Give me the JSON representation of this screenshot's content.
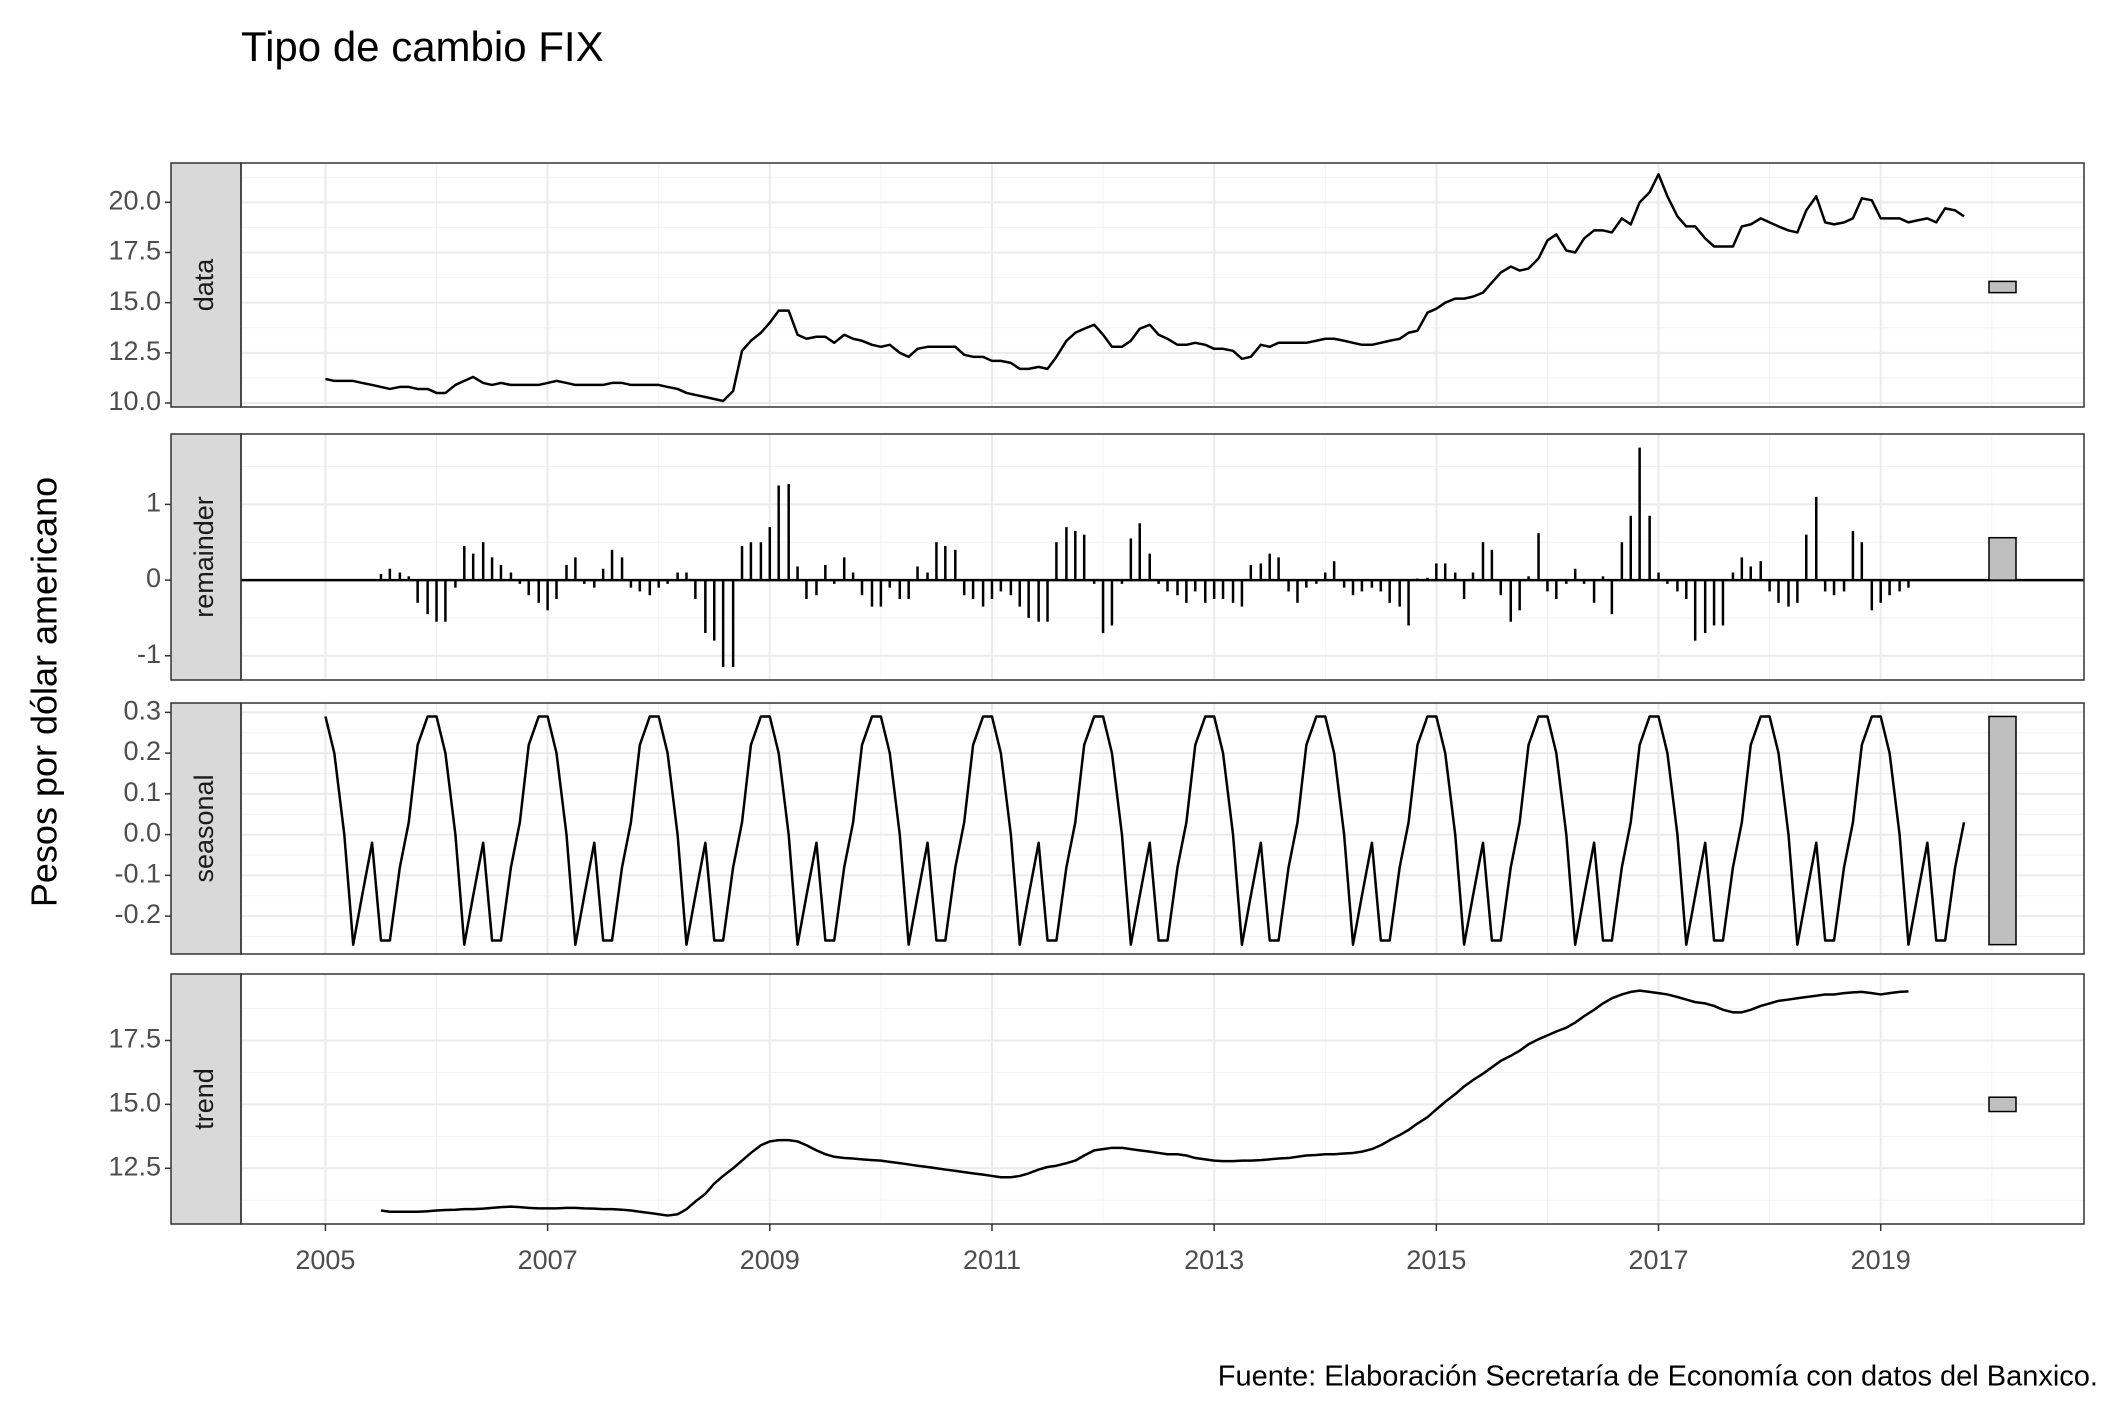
{
  "chart_data": {
    "type": "line",
    "title": "Tipo de cambio FIX",
    "ylabel": "Pesos por dólar americano",
    "caption": "Fuente: Elaboración Secretaría de Economía con datos del Banxico.",
    "x": [
      2005,
      2005.08,
      2005.17,
      2005.25,
      2005.33,
      2005.42,
      2005.5,
      2005.58,
      2005.67,
      2005.75,
      2005.83,
      2005.92,
      2006,
      2006.08,
      2006.17,
      2006.25,
      2006.33,
      2006.42,
      2006.5,
      2006.58,
      2006.67,
      2006.75,
      2006.83,
      2006.92,
      2007,
      2007.08,
      2007.17,
      2007.25,
      2007.33,
      2007.42,
      2007.5,
      2007.58,
      2007.67,
      2007.75,
      2007.83,
      2007.92,
      2008,
      2008.08,
      2008.17,
      2008.25,
      2008.33,
      2008.42,
      2008.5,
      2008.58,
      2008.67,
      2008.75,
      2008.83,
      2008.92,
      2009,
      2009.08,
      2009.17,
      2009.25,
      2009.33,
      2009.42,
      2009.5,
      2009.58,
      2009.67,
      2009.75,
      2009.83,
      2009.92,
      2010,
      2010.08,
      2010.17,
      2010.25,
      2010.33,
      2010.42,
      2010.5,
      2010.58,
      2010.67,
      2010.75,
      2010.83,
      2010.92,
      2011,
      2011.08,
      2011.17,
      2011.25,
      2011.33,
      2011.42,
      2011.5,
      2011.58,
      2011.67,
      2011.75,
      2011.83,
      2011.92,
      2012,
      2012.08,
      2012.17,
      2012.25,
      2012.33,
      2012.42,
      2012.5,
      2012.58,
      2012.67,
      2012.75,
      2012.83,
      2012.92,
      2013,
      2013.08,
      2013.17,
      2013.25,
      2013.33,
      2013.42,
      2013.5,
      2013.58,
      2013.67,
      2013.75,
      2013.83,
      2013.92,
      2014,
      2014.08,
      2014.17,
      2014.25,
      2014.33,
      2014.42,
      2014.5,
      2014.58,
      2014.67,
      2014.75,
      2014.83,
      2014.92,
      2015,
      2015.08,
      2015.17,
      2015.25,
      2015.33,
      2015.42,
      2015.5,
      2015.58,
      2015.67,
      2015.75,
      2015.83,
      2015.92,
      2016,
      2016.08,
      2016.17,
      2016.25,
      2016.33,
      2016.42,
      2016.5,
      2016.58,
      2016.67,
      2016.75,
      2016.83,
      2016.92,
      2017,
      2017.08,
      2017.17,
      2017.25,
      2017.33,
      2017.42,
      2017.5,
      2017.58,
      2017.67,
      2017.75,
      2017.83,
      2017.92,
      2018,
      2018.08,
      2018.17,
      2018.25,
      2018.33,
      2018.42,
      2018.5,
      2018.58,
      2018.67,
      2018.75,
      2018.83,
      2018.92,
      2019,
      2019.08,
      2019.17,
      2019.25,
      2019.33,
      2019.42,
      2019.5,
      2019.58,
      2019.67,
      2019.75
    ],
    "xlim": [
      2004.24,
      2020.83
    ],
    "xticks": [
      2005,
      2007,
      2009,
      2011,
      2013,
      2015,
      2017,
      2019
    ],
    "grid": true,
    "panels": [
      {
        "name": "data",
        "color": "#000000",
        "ylim": [
          9.8,
          21.96
        ],
        "yticks": [
          {
            "value": 10,
            "label": "10.0"
          },
          12.5,
          {
            "value": 15,
            "label": "15.0"
          },
          17.5,
          {
            "value": 20,
            "label": "20.0"
          }
        ],
        "range_bar": [
          15.5,
          16.06
        ],
        "values": [
          11.2,
          11.1,
          11.1,
          11.1,
          11.0,
          10.9,
          10.8,
          10.7,
          10.8,
          10.8,
          10.7,
          10.7,
          10.5,
          10.5,
          10.9,
          11.1,
          11.3,
          11.0,
          10.9,
          11.0,
          10.9,
          10.9,
          10.9,
          10.9,
          11.0,
          11.1,
          11.0,
          10.9,
          10.9,
          10.9,
          10.9,
          11.0,
          11.0,
          10.9,
          10.9,
          10.9,
          10.9,
          10.8,
          10.7,
          10.5,
          10.4,
          10.3,
          10.2,
          10.1,
          10.6,
          12.6,
          13.1,
          13.5,
          14.0,
          14.6,
          14.6,
          13.4,
          13.2,
          13.3,
          13.3,
          13.0,
          13.4,
          13.2,
          13.1,
          12.9,
          12.8,
          12.9,
          12.5,
          12.3,
          12.7,
          12.8,
          12.8,
          12.8,
          12.8,
          12.4,
          12.3,
          12.3,
          12.1,
          12.1,
          12.0,
          11.7,
          11.7,
          11.8,
          11.7,
          12.3,
          13.1,
          13.5,
          13.7,
          13.9,
          13.4,
          12.8,
          12.8,
          13.1,
          13.7,
          13.9,
          13.4,
          13.2,
          12.9,
          12.9,
          13.0,
          12.9,
          12.7,
          12.7,
          12.6,
          12.2,
          12.3,
          12.9,
          12.8,
          13.0,
          13.0,
          13.0,
          13.0,
          13.1,
          13.2,
          13.2,
          13.1,
          13.0,
          12.9,
          12.9,
          13.0,
          13.1,
          13.2,
          13.5,
          13.6,
          14.5,
          14.7,
          15.0,
          15.2,
          15.2,
          15.3,
          15.5,
          16.0,
          16.5,
          16.8,
          16.6,
          16.7,
          17.2,
          18.1,
          18.4,
          17.6,
          17.5,
          18.2,
          18.6,
          18.6,
          18.5,
          19.2,
          18.9,
          20.0,
          20.5,
          21.4,
          20.3,
          19.3,
          18.8,
          18.8,
          18.2,
          17.8,
          17.8,
          17.8,
          18.8,
          18.9,
          19.2,
          19.0,
          18.8,
          18.6,
          18.5,
          19.6,
          20.3,
          19.0,
          18.9,
          19.0,
          19.2,
          20.2,
          20.1,
          19.2,
          19.2,
          19.2,
          19.0,
          19.1,
          19.2,
          19.0,
          19.7,
          19.6,
          19.3
        ]
      },
      {
        "name": "remainder",
        "type": "bar",
        "color": "#000000",
        "ylim": [
          -1.32,
          1.93
        ],
        "yticks": [
          -1,
          0,
          1
        ],
        "range_bar": [
          0,
          0.56
        ],
        "values": [
          null,
          null,
          null,
          null,
          null,
          null,
          0.08,
          0.15,
          0.1,
          0.05,
          -0.3,
          -0.45,
          -0.55,
          -0.55,
          -0.1,
          0.45,
          0.35,
          0.5,
          0.3,
          0.2,
          0.1,
          -0.05,
          -0.2,
          -0.3,
          -0.4,
          -0.25,
          0.2,
          0.3,
          -0.05,
          -0.1,
          0.15,
          0.4,
          0.3,
          -0.1,
          -0.15,
          -0.2,
          -0.1,
          -0.05,
          0.1,
          0.1,
          -0.25,
          -0.7,
          -0.8,
          -1.15,
          -1.15,
          0.45,
          0.5,
          0.5,
          0.7,
          1.25,
          1.27,
          0.18,
          -0.25,
          -0.2,
          0.2,
          -0.05,
          0.3,
          0.1,
          -0.2,
          -0.35,
          -0.35,
          -0.1,
          -0.25,
          -0.25,
          0.18,
          0.1,
          0.5,
          0.45,
          0.4,
          -0.2,
          -0.25,
          -0.35,
          -0.25,
          -0.15,
          -0.2,
          -0.35,
          -0.5,
          -0.55,
          -0.55,
          0.5,
          0.7,
          0.65,
          0.6,
          -0.05,
          -0.7,
          -0.6,
          -0.05,
          0.55,
          0.75,
          0.35,
          -0.05,
          -0.15,
          -0.2,
          -0.3,
          -0.15,
          -0.3,
          -0.25,
          -0.25,
          -0.3,
          -0.35,
          0.2,
          0.22,
          0.35,
          0.3,
          -0.15,
          -0.3,
          -0.1,
          -0.05,
          0.1,
          0.25,
          -0.1,
          -0.2,
          -0.15,
          -0.1,
          -0.15,
          -0.3,
          -0.35,
          -0.6,
          0.02,
          0.03,
          0.22,
          0.22,
          0.1,
          -0.25,
          0.1,
          0.5,
          0.4,
          -0.2,
          -0.55,
          -0.4,
          0.05,
          0.62,
          -0.15,
          -0.25,
          -0.05,
          0.15,
          -0.05,
          -0.3,
          0.05,
          -0.45,
          0.5,
          0.85,
          1.75,
          0.85,
          0.1,
          -0.05,
          -0.15,
          -0.25,
          -0.8,
          -0.7,
          -0.6,
          -0.6,
          0.1,
          0.3,
          0.18,
          0.25,
          -0.15,
          -0.3,
          -0.35,
          -0.3,
          0.6,
          1.1,
          -0.15,
          -0.2,
          -0.15,
          0.65,
          0.5,
          -0.4,
          -0.3,
          -0.2,
          -0.15,
          -0.1,
          null,
          null,
          null,
          null,
          null,
          null
        ]
      },
      {
        "name": "seasonal",
        "color": "#000000",
        "ylim": [
          -0.293,
          0.323
        ],
        "yticks": [
          -0.2,
          -0.1,
          {
            "value": 0,
            "label": "0.0"
          },
          0.1,
          0.2,
          0.3
        ],
        "range_bar": [
          -0.27,
          0.29
        ],
        "values": [
          0.29,
          0.2,
          0,
          -0.27,
          -0.15,
          -0.02,
          -0.26,
          -0.26,
          -0.08,
          0.03,
          0.22,
          0.29,
          0.29,
          0.2,
          0,
          -0.27,
          -0.15,
          -0.02,
          -0.26,
          -0.26,
          -0.08,
          0.03,
          0.22,
          0.29,
          0.29,
          0.2,
          0,
          -0.27,
          -0.15,
          -0.02,
          -0.26,
          -0.26,
          -0.08,
          0.03,
          0.22,
          0.29,
          0.29,
          0.2,
          0,
          -0.27,
          -0.15,
          -0.02,
          -0.26,
          -0.26,
          -0.08,
          0.03,
          0.22,
          0.29,
          0.29,
          0.2,
          0,
          -0.27,
          -0.15,
          -0.02,
          -0.26,
          -0.26,
          -0.08,
          0.03,
          0.22,
          0.29,
          0.29,
          0.2,
          0,
          -0.27,
          -0.15,
          -0.02,
          -0.26,
          -0.26,
          -0.08,
          0.03,
          0.22,
          0.29,
          0.29,
          0.2,
          0,
          -0.27,
          -0.15,
          -0.02,
          -0.26,
          -0.26,
          -0.08,
          0.03,
          0.22,
          0.29,
          0.29,
          0.2,
          0,
          -0.27,
          -0.15,
          -0.02,
          -0.26,
          -0.26,
          -0.08,
          0.03,
          0.22,
          0.29,
          0.29,
          0.2,
          0,
          -0.27,
          -0.15,
          -0.02,
          -0.26,
          -0.26,
          -0.08,
          0.03,
          0.22,
          0.29,
          0.29,
          0.2,
          0,
          -0.27,
          -0.15,
          -0.02,
          -0.26,
          -0.26,
          -0.08,
          0.03,
          0.22,
          0.29,
          0.29,
          0.2,
          0,
          -0.27,
          -0.15,
          -0.02,
          -0.26,
          -0.26,
          -0.08,
          0.03,
          0.22,
          0.29,
          0.29,
          0.2,
          0,
          -0.27,
          -0.15,
          -0.02,
          -0.26,
          -0.26,
          -0.08,
          0.03,
          0.22,
          0.29,
          0.29,
          0.2,
          0,
          -0.27,
          -0.15,
          -0.02,
          -0.26,
          -0.26,
          -0.08,
          0.03,
          0.22,
          0.29,
          0.29,
          0.2,
          0,
          -0.27,
          -0.15,
          -0.02,
          -0.26,
          -0.26,
          -0.08,
          0.03,
          0.22,
          0.29,
          0.29,
          0.2,
          0,
          -0.27,
          -0.15,
          -0.02,
          -0.26,
          -0.26,
          -0.08,
          0.03
        ]
      },
      {
        "name": "trend",
        "color": "#000000",
        "ylim": [
          10.32,
          20.1
        ],
        "yticks": [
          12.5,
          {
            "value": 15,
            "label": "15.0"
          },
          17.5
        ],
        "range_bar": [
          14.72,
          15.28
        ],
        "values": [
          null,
          null,
          null,
          null,
          null,
          null,
          10.85,
          10.8,
          10.8,
          10.8,
          10.8,
          10.82,
          10.85,
          10.87,
          10.88,
          10.9,
          10.9,
          10.92,
          10.95,
          10.98,
          11.0,
          10.98,
          10.95,
          10.93,
          10.93,
          10.93,
          10.95,
          10.95,
          10.93,
          10.92,
          10.9,
          10.9,
          10.88,
          10.85,
          10.8,
          10.75,
          10.7,
          10.65,
          10.7,
          10.9,
          11.2,
          11.5,
          11.9,
          12.2,
          12.5,
          12.8,
          13.1,
          13.4,
          13.55,
          13.6,
          13.6,
          13.55,
          13.4,
          13.2,
          13.05,
          12.95,
          12.9,
          12.88,
          12.85,
          12.82,
          12.8,
          12.75,
          12.7,
          12.65,
          12.6,
          12.55,
          12.5,
          12.45,
          12.4,
          12.35,
          12.3,
          12.25,
          12.2,
          12.15,
          12.15,
          12.2,
          12.3,
          12.45,
          12.55,
          12.6,
          12.7,
          12.8,
          13.0,
          13.2,
          13.25,
          13.3,
          13.3,
          13.25,
          13.2,
          13.15,
          13.1,
          13.05,
          13.05,
          13.0,
          12.9,
          12.85,
          12.8,
          12.78,
          12.78,
          12.8,
          12.8,
          12.82,
          12.85,
          12.88,
          12.9,
          12.95,
          13.0,
          13.02,
          13.05,
          13.05,
          13.08,
          13.1,
          13.15,
          13.25,
          13.4,
          13.6,
          13.8,
          14.0,
          14.25,
          14.5,
          14.8,
          15.1,
          15.4,
          15.7,
          15.95,
          16.2,
          16.45,
          16.7,
          16.9,
          17.1,
          17.35,
          17.55,
          17.7,
          17.85,
          18.0,
          18.2,
          18.45,
          18.7,
          18.95,
          19.15,
          19.3,
          19.4,
          19.45,
          19.4,
          19.35,
          19.3,
          19.2,
          19.1,
          19.0,
          18.95,
          18.85,
          18.7,
          18.6,
          18.6,
          18.7,
          18.85,
          18.95,
          19.05,
          19.1,
          19.15,
          19.2,
          19.25,
          19.3,
          19.3,
          19.35,
          19.38,
          19.4,
          19.35,
          19.3,
          19.35,
          19.4,
          19.42,
          null,
          null,
          null,
          null,
          null,
          null
        ]
      }
    ]
  }
}
